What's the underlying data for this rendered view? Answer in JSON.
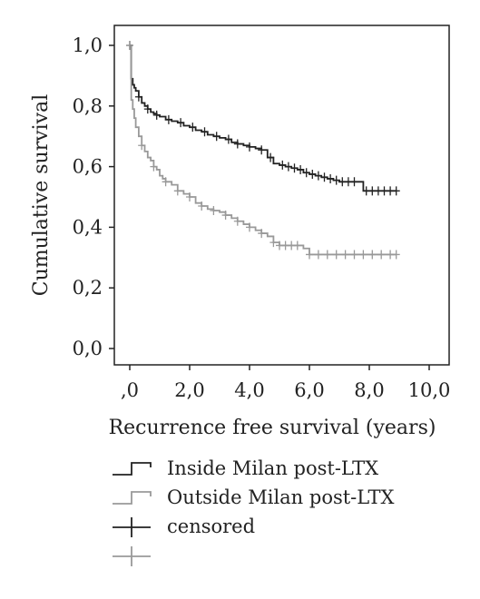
{
  "chart_data": {
    "type": "line",
    "title": "",
    "xlabel": "Recurrence free survival (years)",
    "ylabel": "Cumulative survival",
    "xlim": [
      0,
      10
    ],
    "ylim": [
      0,
      1
    ],
    "x_ticks": [
      ",0",
      "2,0",
      "4,0",
      "6,0",
      "8,0",
      "10,0"
    ],
    "y_ticks": [
      "0,0",
      "0,2",
      "0,4",
      "0,6",
      "0,8",
      "1,0"
    ],
    "grid": false,
    "legend_position": "bottom",
    "series": [
      {
        "name": "Inside Milan post-LTX",
        "color": "#222222",
        "x": [
          0,
          0.05,
          0.1,
          0.15,
          0.2,
          0.3,
          0.4,
          0.5,
          0.6,
          0.7,
          0.8,
          0.9,
          1.0,
          1.2,
          1.4,
          1.6,
          1.8,
          2.0,
          2.2,
          2.4,
          2.6,
          2.8,
          3.0,
          3.2,
          3.4,
          3.6,
          3.8,
          4.0,
          4.2,
          4.4,
          4.6,
          4.8,
          5.0,
          5.2,
          5.4,
          5.6,
          5.8,
          6.0,
          6.2,
          6.4,
          6.6,
          6.8,
          7.0,
          7.2,
          7.4,
          7.6,
          7.8,
          8.0,
          8.9
        ],
        "values": [
          1.0,
          0.89,
          0.87,
          0.86,
          0.85,
          0.83,
          0.81,
          0.8,
          0.79,
          0.78,
          0.775,
          0.77,
          0.765,
          0.755,
          0.75,
          0.745,
          0.735,
          0.73,
          0.72,
          0.715,
          0.705,
          0.7,
          0.695,
          0.69,
          0.68,
          0.675,
          0.67,
          0.665,
          0.66,
          0.655,
          0.63,
          0.61,
          0.605,
          0.6,
          0.595,
          0.59,
          0.58,
          0.575,
          0.57,
          0.565,
          0.56,
          0.555,
          0.55,
          0.55,
          0.55,
          0.55,
          0.52,
          0.52,
          0.52
        ]
      },
      {
        "name": "Outside Milan post-LTX",
        "color": "#999999",
        "x": [
          0,
          0.05,
          0.1,
          0.15,
          0.2,
          0.3,
          0.4,
          0.5,
          0.6,
          0.7,
          0.8,
          0.9,
          1.0,
          1.1,
          1.2,
          1.4,
          1.6,
          1.8,
          2.0,
          2.2,
          2.4,
          2.6,
          2.8,
          3.0,
          3.2,
          3.4,
          3.6,
          3.8,
          4.0,
          4.2,
          4.4,
          4.6,
          4.8,
          5.0,
          5.4,
          5.8,
          6.0,
          6.2,
          7.0,
          8.0,
          8.9
        ],
        "values": [
          1.0,
          0.82,
          0.79,
          0.76,
          0.73,
          0.7,
          0.67,
          0.65,
          0.63,
          0.62,
          0.6,
          0.59,
          0.57,
          0.56,
          0.55,
          0.54,
          0.52,
          0.51,
          0.5,
          0.48,
          0.47,
          0.46,
          0.455,
          0.45,
          0.44,
          0.43,
          0.42,
          0.41,
          0.4,
          0.39,
          0.38,
          0.37,
          0.35,
          0.34,
          0.34,
          0.33,
          0.31,
          0.31,
          0.31,
          0.31,
          0.31
        ]
      }
    ],
    "censored_marks": [
      {
        "series": 0,
        "x": [
          0,
          0.3,
          0.6,
          0.9,
          1.3,
          1.7,
          2.1,
          2.5,
          2.9,
          3.3,
          3.6,
          4.0,
          4.4,
          4.7,
          5.1,
          5.3,
          5.5,
          5.7,
          5.9,
          6.1,
          6.3,
          6.5,
          6.7,
          6.9,
          7.1,
          7.3,
          7.5,
          7.9,
          8.1,
          8.3,
          8.5,
          8.7,
          8.9
        ]
      },
      {
        "series": 1,
        "x": [
          0,
          0.4,
          0.8,
          1.2,
          1.6,
          2.0,
          2.4,
          2.8,
          3.2,
          3.6,
          4.0,
          4.4,
          4.8,
          5.0,
          5.2,
          5.4,
          5.6,
          6.0,
          6.3,
          6.6,
          6.9,
          7.2,
          7.5,
          7.8,
          8.1,
          8.4,
          8.7,
          8.9
        ]
      }
    ]
  },
  "legend": {
    "items": [
      {
        "label": "Inside Milan post-LTX",
        "kind": "line",
        "color": "#222222"
      },
      {
        "label": "Outside Milan post-LTX",
        "kind": "line",
        "color": "#999999"
      },
      {
        "label": "censored",
        "kind": "cross",
        "color": "#222222"
      },
      {
        "label": "",
        "kind": "cross",
        "color": "#999999"
      }
    ]
  }
}
